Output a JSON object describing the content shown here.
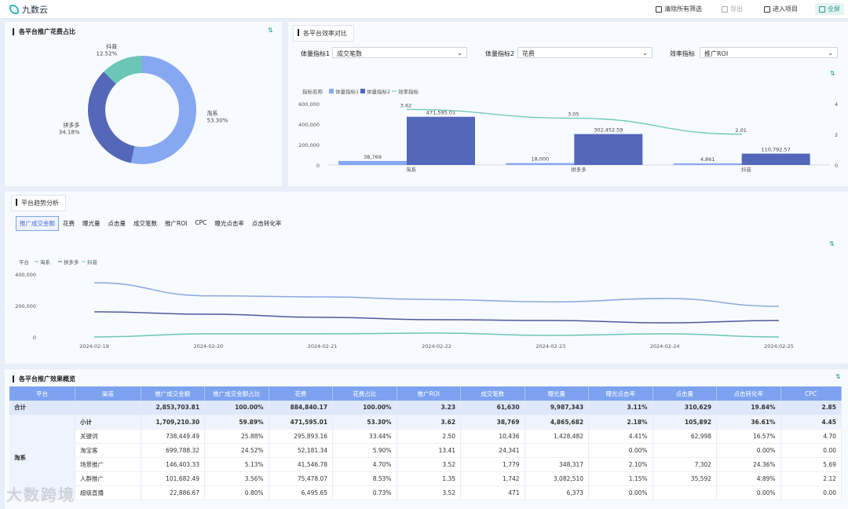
{
  "topbar": {
    "logo": "九数云",
    "clear_filters": "清除所有筛选",
    "export": "导出",
    "enter_project": "进入项目",
    "fullscreen": "全屏"
  },
  "pie_card": {
    "title": "各平台推广花费占比",
    "slices": [
      {
        "name": "淘系",
        "pct_label": "53.30%",
        "value": 53.3,
        "color": "#86a8f2"
      },
      {
        "name": "拼多多",
        "pct_label": "34.18%",
        "value": 34.18,
        "color": "#5467b8"
      },
      {
        "name": "抖音",
        "pct_label": "12.52%",
        "value": 12.52,
        "color": "#6bc6b8"
      }
    ]
  },
  "efficiency_card": {
    "tab": "各平台效率对比",
    "metric1_label": "体量指标1",
    "metric1_value": "成交笔数",
    "metric2_label": "体量指标2",
    "metric2_value": "花费",
    "eff_label": "效率指标",
    "eff_value": "推广ROI"
  },
  "trend_card": {
    "tab": "平台趋势分析",
    "metric_tabs": [
      "推广成交金额",
      "花费",
      "曝光量",
      "点击量",
      "成交笔数",
      "推广ROI",
      "CPC",
      "曝光点击率",
      "点击转化率"
    ],
    "active_tab": 0
  },
  "chart_data": [
    {
      "type": "bar",
      "legend_title": "指标名称",
      "categories": [
        "淘系",
        "拼多多",
        "抖音"
      ],
      "series": [
        {
          "name": "体量指标1",
          "values": [
            38769,
            18000,
            4861
          ],
          "labels": [
            "38,769",
            "18,000",
            "4,861"
          ],
          "color": "#86a8f2"
        },
        {
          "name": "体量指标2",
          "values": [
            471595.01,
            302452.59,
            110792.57
          ],
          "labels": [
            "471,595.01",
            "302,452.59",
            "110,792.57"
          ],
          "color": "#5467b8"
        },
        {
          "name": "效率指标",
          "type": "line",
          "values": [
            3.62,
            3.05,
            2.01
          ],
          "labels": [
            "3.62",
            "3.05",
            "2.01"
          ],
          "color": "#6bc6b8"
        }
      ],
      "y_ticks": [
        "600,000",
        "400,000",
        "200,000",
        "0"
      ],
      "ylim": [
        0,
        600000
      ],
      "y2_ticks": [
        "4",
        "2",
        "0"
      ],
      "y2lim": [
        0,
        4
      ]
    },
    {
      "type": "line",
      "legend_title": "平台",
      "x": [
        "2024-02-19",
        "2024-02-20",
        "2024-02-21",
        "2024-02-22",
        "2024-02-23",
        "2024-02-24",
        "2024-02-25"
      ],
      "series": [
        {
          "name": "淘系",
          "values": [
            345000,
            262000,
            255000,
            238000,
            223000,
            245000,
            195000
          ],
          "color": "#8aa6df"
        },
        {
          "name": "拼多多",
          "values": [
            160000,
            145000,
            125000,
            110000,
            105000,
            90000,
            105000
          ],
          "color": "#4d5a9c"
        },
        {
          "name": "抖音",
          "values": [
            0,
            20000,
            20000,
            25000,
            10000,
            20000,
            0
          ],
          "color": "#6bc6b8"
        }
      ],
      "y_ticks": [
        "400,000",
        "200,000",
        "0"
      ],
      "ylim": [
        0,
        400000
      ]
    }
  ],
  "table_card": {
    "title": "各平台推广效果概览",
    "headers": [
      "平台",
      "渠道",
      "推广成交金额",
      "推广成交金额占比",
      "花费",
      "花费占比",
      "推广ROI",
      "成交笔数",
      "曝光量",
      "曝光点击率",
      "点击量",
      "点击转化率",
      "CPC"
    ],
    "total_row": [
      "合计",
      "",
      "2,853,703.81",
      "100.00%",
      "884,840.17",
      "100.00%",
      "3.23",
      "61,630",
      "9,987,343",
      "3.11%",
      "310,629",
      "19.84%",
      "2.85"
    ],
    "platform": "淘系",
    "subtotal_row": [
      "小计",
      "1,709,210.30",
      "59.89%",
      "471,595.01",
      "53.30%",
      "3.62",
      "38,769",
      "4,865,682",
      "2.18%",
      "105,892",
      "36.61%",
      "4.45"
    ],
    "rows": [
      [
        "关键词",
        "738,449.49",
        "25.88%",
        "295,893.16",
        "33.44%",
        "2.50",
        "10,436",
        "1,428,482",
        "4.41%",
        "62,998",
        "16.57%",
        "4.70"
      ],
      [
        "淘宝客",
        "699,788.32",
        "24.52%",
        "52,181.34",
        "5.90%",
        "13.41",
        "24,341",
        "",
        "0.00%",
        "",
        "0.00%",
        "0.00"
      ],
      [
        "场景推广",
        "146,403.33",
        "5.13%",
        "41,546.78",
        "4.70%",
        "3.52",
        "1,779",
        "348,317",
        "2.10%",
        "7,302",
        "24.36%",
        "5.69"
      ],
      [
        "人群推广",
        "101,682.49",
        "3.56%",
        "75,478.07",
        "8.53%",
        "1.35",
        "1,742",
        "3,082,510",
        "1.15%",
        "35,592",
        "4.89%",
        "2.12"
      ],
      [
        "超级直播",
        "22,886.67",
        "0.80%",
        "6,495.65",
        "0.73%",
        "3.52",
        "471",
        "6,373",
        "0.00%",
        "",
        "0.00%",
        "0.00"
      ]
    ]
  },
  "watermark": "大数跨境"
}
